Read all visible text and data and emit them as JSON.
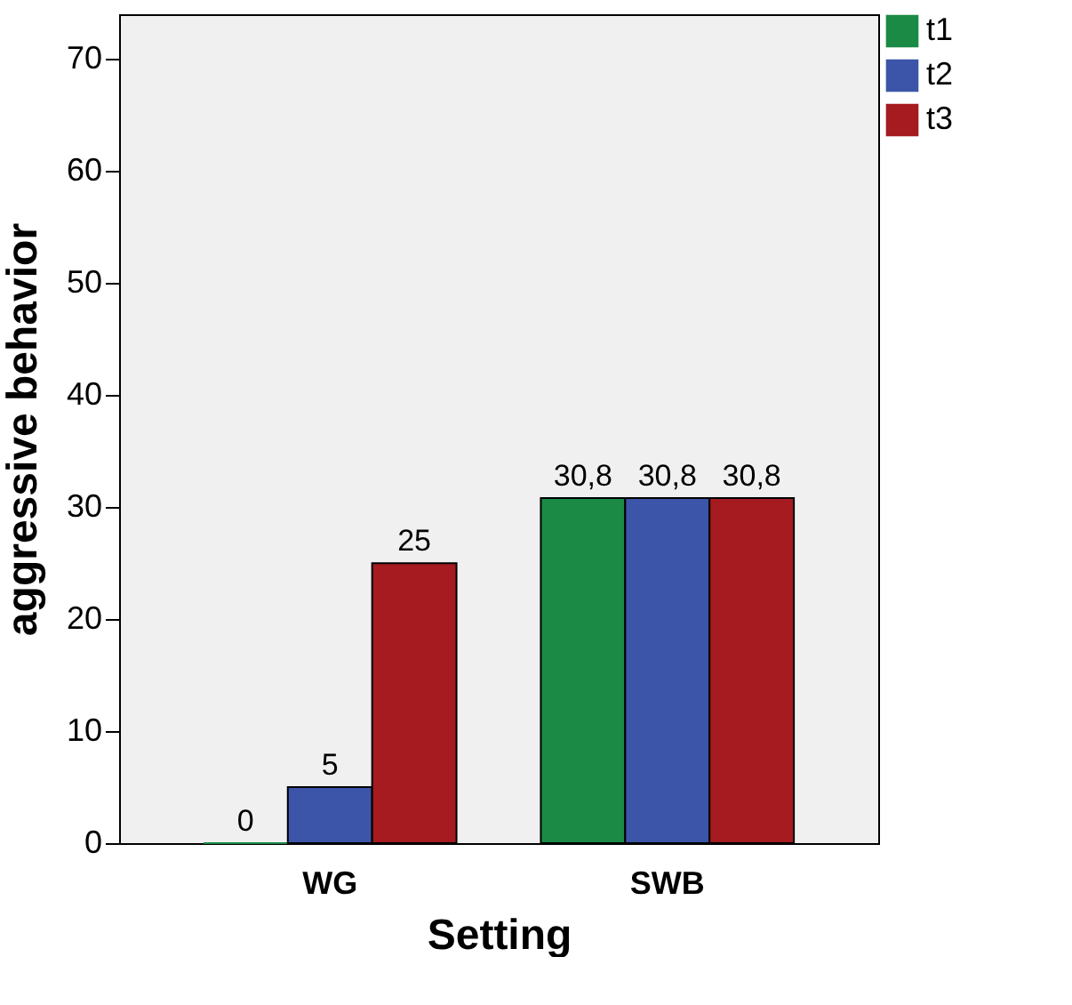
{
  "chart_data": {
    "type": "bar",
    "xlabel": "Setting",
    "ylabel": "aggressive behavior",
    "categories": [
      "WG",
      "SWB"
    ],
    "series": [
      {
        "name": "t1",
        "color": "#1a8a45",
        "values": [
          0,
          30.8
        ],
        "value_labels": [
          "0",
          "30,8"
        ]
      },
      {
        "name": "t2",
        "color": "#3c55a8",
        "values": [
          5,
          30.8
        ],
        "value_labels": [
          "5",
          "30,8"
        ]
      },
      {
        "name": "t3",
        "color": "#a51b1f",
        "values": [
          25,
          30.8
        ],
        "value_labels": [
          "25",
          "30,8"
        ]
      }
    ],
    "ylim": [
      0,
      74
    ],
    "yticks": [
      0,
      10,
      20,
      30,
      40,
      50,
      60,
      70
    ],
    "grid": false,
    "legend": "top right"
  }
}
